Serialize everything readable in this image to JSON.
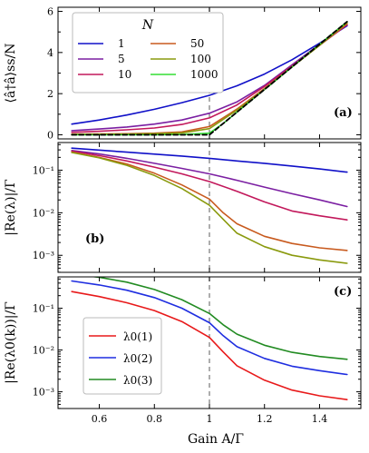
{
  "chart_data": [
    {
      "type": "line",
      "panel_label": "(a)",
      "ylabel": "⟨â†â⟩ss/N",
      "xlim": [
        0.45,
        1.55
      ],
      "ylim": [
        -0.2,
        6.2
      ],
      "yticks": [
        0,
        2,
        4,
        6
      ],
      "yscale": "linear",
      "legend_title": "N",
      "legend_placement": "top-left",
      "series": [
        {
          "name": "1",
          "color": "#1010c8",
          "points": [
            [
              0.5,
              0.52
            ],
            [
              0.6,
              0.72
            ],
            [
              0.7,
              0.96
            ],
            [
              0.8,
              1.24
            ],
            [
              0.9,
              1.56
            ],
            [
              1.0,
              1.92
            ],
            [
              1.1,
              2.38
            ],
            [
              1.2,
              2.95
            ],
            [
              1.3,
              3.65
            ],
            [
              1.4,
              4.45
            ],
            [
              1.5,
              5.3
            ]
          ]
        },
        {
          "name": "5",
          "color": "#7b1fa2",
          "points": [
            [
              0.5,
              0.2
            ],
            [
              0.6,
              0.28
            ],
            [
              0.7,
              0.38
            ],
            [
              0.8,
              0.52
            ],
            [
              0.9,
              0.72
            ],
            [
              1.0,
              1.05
            ],
            [
              1.1,
              1.6
            ],
            [
              1.2,
              2.4
            ],
            [
              1.3,
              3.4
            ],
            [
              1.4,
              4.4
            ],
            [
              1.5,
              5.35
            ]
          ]
        },
        {
          "name": "10",
          "color": "#c2185b",
          "points": [
            [
              0.5,
              0.12
            ],
            [
              0.6,
              0.17
            ],
            [
              0.7,
              0.24
            ],
            [
              0.8,
              0.33
            ],
            [
              0.9,
              0.5
            ],
            [
              1.0,
              0.82
            ],
            [
              1.1,
              1.45
            ],
            [
              1.2,
              2.35
            ],
            [
              1.3,
              3.35
            ],
            [
              1.4,
              4.35
            ],
            [
              1.5,
              5.35
            ]
          ]
        },
        {
          "name": "50",
          "color": "#c85a1e",
          "points": [
            [
              0.5,
              0.03
            ],
            [
              0.6,
              0.04
            ],
            [
              0.7,
              0.05
            ],
            [
              0.8,
              0.08
            ],
            [
              0.9,
              0.14
            ],
            [
              1.0,
              0.4
            ],
            [
              1.1,
              1.25
            ],
            [
              1.2,
              2.25
            ],
            [
              1.3,
              3.3
            ],
            [
              1.4,
              4.35
            ],
            [
              1.5,
              5.4
            ]
          ]
        },
        {
          "name": "100",
          "color": "#8a9a0e",
          "points": [
            [
              0.5,
              0.02
            ],
            [
              0.6,
              0.02
            ],
            [
              0.7,
              0.03
            ],
            [
              0.8,
              0.05
            ],
            [
              0.9,
              0.09
            ],
            [
              1.0,
              0.3
            ],
            [
              1.1,
              1.2
            ],
            [
              1.2,
              2.2
            ],
            [
              1.3,
              3.3
            ],
            [
              1.4,
              4.35
            ],
            [
              1.5,
              5.45
            ]
          ]
        },
        {
          "name": "1000",
          "color": "#33dd33",
          "points": [
            [
              0.5,
              0.0
            ],
            [
              0.6,
              0.0
            ],
            [
              0.7,
              0.0
            ],
            [
              0.8,
              0.0
            ],
            [
              0.9,
              0.01
            ],
            [
              1.0,
              0.08
            ],
            [
              1.05,
              0.55
            ],
            [
              1.1,
              1.1
            ],
            [
              1.2,
              2.2
            ],
            [
              1.3,
              3.3
            ],
            [
              1.4,
              4.4
            ],
            [
              1.5,
              5.5
            ]
          ]
        },
        {
          "name": "",
          "color": "#000000",
          "dashed": true,
          "points": [
            [
              0.5,
              0.0
            ],
            [
              1.0,
              0.0
            ],
            [
              1.1,
              1.1
            ],
            [
              1.2,
              2.2
            ],
            [
              1.3,
              3.3
            ],
            [
              1.4,
              4.4
            ],
            [
              1.5,
              5.5
            ]
          ]
        }
      ]
    },
    {
      "type": "line",
      "panel_label": "(b)",
      "ylabel": "|Re(λ)|/Γ",
      "xlim": [
        0.45,
        1.55
      ],
      "yscale": "log",
      "ylim_exp": [
        -3.4,
        -0.35
      ],
      "ytick_exps": [
        -3,
        -2,
        -1
      ],
      "ytick_labels": [
        "10⁻³",
        "10⁻²",
        "10⁻¹"
      ],
      "series": [
        {
          "name": "1",
          "color": "#1010c8",
          "points": [
            [
              0.5,
              0.33
            ],
            [
              0.7,
              0.265
            ],
            [
              0.9,
              0.215
            ],
            [
              1.0,
              0.19
            ],
            [
              1.1,
              0.165
            ],
            [
              1.2,
              0.145
            ],
            [
              1.3,
              0.125
            ],
            [
              1.4,
              0.107
            ],
            [
              1.5,
              0.09
            ]
          ]
        },
        {
          "name": "5",
          "color": "#7b1fa2",
          "points": [
            [
              0.5,
              0.29
            ],
            [
              0.6,
              0.24
            ],
            [
              0.7,
              0.19
            ],
            [
              0.8,
              0.145
            ],
            [
              0.9,
              0.11
            ],
            [
              1.0,
              0.082
            ],
            [
              1.1,
              0.058
            ],
            [
              1.2,
              0.04
            ],
            [
              1.3,
              0.028
            ],
            [
              1.4,
              0.02
            ],
            [
              1.5,
              0.014
            ]
          ]
        },
        {
          "name": "10",
          "color": "#c2185b",
          "points": [
            [
              0.5,
              0.28
            ],
            [
              0.6,
              0.22
            ],
            [
              0.7,
              0.165
            ],
            [
              0.8,
              0.118
            ],
            [
              0.9,
              0.082
            ],
            [
              1.0,
              0.054
            ],
            [
              1.1,
              0.032
            ],
            [
              1.2,
              0.018
            ],
            [
              1.3,
              0.011
            ],
            [
              1.4,
              0.0085
            ],
            [
              1.5,
              0.0068
            ]
          ]
        },
        {
          "name": "50",
          "color": "#c85a1e",
          "points": [
            [
              0.5,
              0.265
            ],
            [
              0.6,
              0.2
            ],
            [
              0.7,
              0.14
            ],
            [
              0.8,
              0.085
            ],
            [
              0.9,
              0.045
            ],
            [
              1.0,
              0.021
            ],
            [
              1.05,
              0.01
            ],
            [
              1.1,
              0.0055
            ],
            [
              1.2,
              0.0028
            ],
            [
              1.3,
              0.0019
            ],
            [
              1.4,
              0.0015
            ],
            [
              1.5,
              0.0013
            ]
          ]
        },
        {
          "name": "100",
          "color": "#8a9a0e",
          "points": [
            [
              0.5,
              0.26
            ],
            [
              0.6,
              0.195
            ],
            [
              0.7,
              0.13
            ],
            [
              0.8,
              0.075
            ],
            [
              0.9,
              0.037
            ],
            [
              1.0,
              0.015
            ],
            [
              1.05,
              0.007
            ],
            [
              1.1,
              0.0033
            ],
            [
              1.2,
              0.0016
            ],
            [
              1.3,
              0.001
            ],
            [
              1.4,
              0.00078
            ],
            [
              1.5,
              0.00065
            ]
          ]
        }
      ]
    },
    {
      "type": "line",
      "panel_label": "(c)",
      "ylabel": "|Re(λ0(k))|/Γ",
      "xlim": [
        0.45,
        1.55
      ],
      "yscale": "log",
      "ylim_exp": [
        -3.4,
        -0.25
      ],
      "ytick_exps": [
        -3,
        -2,
        -1
      ],
      "ytick_labels": [
        "10⁻³",
        "10⁻²",
        "10⁻¹"
      ],
      "legend_placement": "bottom-left",
      "series": [
        {
          "name": "λ0(1)",
          "color": "#e8191a",
          "points": [
            [
              0.5,
              0.25
            ],
            [
              0.6,
              0.19
            ],
            [
              0.7,
              0.135
            ],
            [
              0.8,
              0.088
            ],
            [
              0.9,
              0.048
            ],
            [
              1.0,
              0.02
            ],
            [
              1.05,
              0.009
            ],
            [
              1.1,
              0.0042
            ],
            [
              1.2,
              0.0019
            ],
            [
              1.3,
              0.0011
            ],
            [
              1.4,
              0.0008
            ],
            [
              1.5,
              0.00065
            ]
          ]
        },
        {
          "name": "λ0(2)",
          "color": "#1f2ee0",
          "points": [
            [
              0.5,
              0.45
            ],
            [
              0.6,
              0.36
            ],
            [
              0.7,
              0.27
            ],
            [
              0.8,
              0.18
            ],
            [
              0.9,
              0.1
            ],
            [
              1.0,
              0.045
            ],
            [
              1.05,
              0.022
            ],
            [
              1.1,
              0.012
            ],
            [
              1.2,
              0.0063
            ],
            [
              1.3,
              0.0041
            ],
            [
              1.4,
              0.0032
            ],
            [
              1.5,
              0.0026
            ]
          ]
        },
        {
          "name": "λ0(3)",
          "color": "#228b22",
          "points": [
            [
              0.55,
              0.6
            ],
            [
              0.6,
              0.55
            ],
            [
              0.7,
              0.42
            ],
            [
              0.8,
              0.28
            ],
            [
              0.9,
              0.16
            ],
            [
              1.0,
              0.075
            ],
            [
              1.05,
              0.04
            ],
            [
              1.1,
              0.024
            ],
            [
              1.2,
              0.013
            ],
            [
              1.3,
              0.0088
            ],
            [
              1.4,
              0.007
            ],
            [
              1.5,
              0.006
            ]
          ]
        }
      ]
    }
  ],
  "shared_x": {
    "xlabel": "Gain A/Γ",
    "xticks": [
      0.6,
      0.8,
      1.0,
      1.2,
      1.4
    ],
    "xtick_labels": [
      "0.6",
      "0.8",
      "1",
      "1.2",
      "1.4"
    ],
    "vline_x": 1.0
  }
}
